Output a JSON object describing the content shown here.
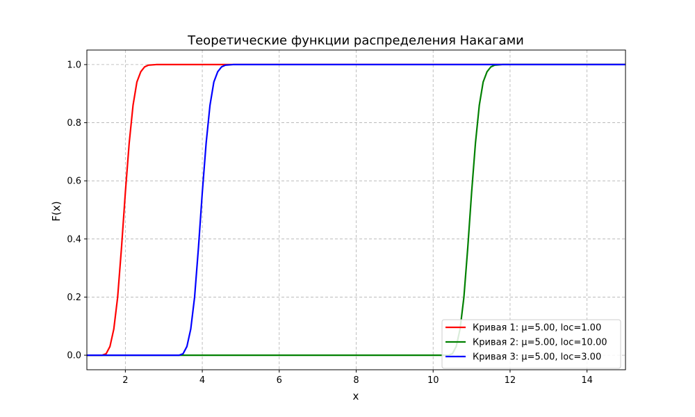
{
  "chart_data": {
    "type": "line",
    "title": "Теоретические функции распределения Накагами",
    "xlabel": "x",
    "ylabel": "F(x)",
    "xlim": [
      1,
      15
    ],
    "ylim": [
      -0.05,
      1.05
    ],
    "xticks": [
      2,
      4,
      6,
      8,
      10,
      12,
      14
    ],
    "yticks": [
      0.0,
      0.2,
      0.4,
      0.6,
      0.8,
      1.0
    ],
    "xtick_labels": [
      "2",
      "4",
      "6",
      "8",
      "10",
      "12",
      "14"
    ],
    "ytick_labels": [
      "0.0",
      "0.2",
      "0.4",
      "0.6",
      "0.8",
      "1.0"
    ],
    "grid": true,
    "legend_position": "lower-right",
    "series": [
      {
        "name": "Кривая 1: μ=5.00, loc=1.00",
        "color": "#ff0000",
        "points": [
          [
            1.0,
            0.0
          ],
          [
            1.4,
            0.0
          ],
          [
            1.5,
            0.005
          ],
          [
            1.6,
            0.03
          ],
          [
            1.7,
            0.09
          ],
          [
            1.8,
            0.2
          ],
          [
            1.9,
            0.37
          ],
          [
            2.0,
            0.56
          ],
          [
            2.1,
            0.73
          ],
          [
            2.2,
            0.86
          ],
          [
            2.3,
            0.94
          ],
          [
            2.4,
            0.975
          ],
          [
            2.5,
            0.992
          ],
          [
            2.6,
            0.998
          ],
          [
            2.8,
            1.0
          ],
          [
            15.0,
            1.0
          ]
        ]
      },
      {
        "name": "Кривая 2: μ=5.00, loc=10.00",
        "color": "#008000",
        "points": [
          [
            1.0,
            0.0
          ],
          [
            10.4,
            0.0
          ],
          [
            10.5,
            0.005
          ],
          [
            10.6,
            0.03
          ],
          [
            10.7,
            0.09
          ],
          [
            10.8,
            0.2
          ],
          [
            10.9,
            0.37
          ],
          [
            11.0,
            0.56
          ],
          [
            11.1,
            0.73
          ],
          [
            11.2,
            0.86
          ],
          [
            11.3,
            0.94
          ],
          [
            11.4,
            0.975
          ],
          [
            11.5,
            0.992
          ],
          [
            11.6,
            0.998
          ],
          [
            11.8,
            1.0
          ],
          [
            15.0,
            1.0
          ]
        ]
      },
      {
        "name": "Кривая 3: μ=5.00, loc=3.00",
        "color": "#0000ff",
        "points": [
          [
            1.0,
            0.0
          ],
          [
            3.4,
            0.0
          ],
          [
            3.5,
            0.005
          ],
          [
            3.6,
            0.03
          ],
          [
            3.7,
            0.09
          ],
          [
            3.8,
            0.2
          ],
          [
            3.9,
            0.37
          ],
          [
            4.0,
            0.56
          ],
          [
            4.1,
            0.73
          ],
          [
            4.2,
            0.86
          ],
          [
            4.3,
            0.94
          ],
          [
            4.4,
            0.975
          ],
          [
            4.5,
            0.992
          ],
          [
            4.6,
            0.998
          ],
          [
            4.8,
            1.0
          ],
          [
            15.0,
            1.0
          ]
        ]
      }
    ]
  }
}
